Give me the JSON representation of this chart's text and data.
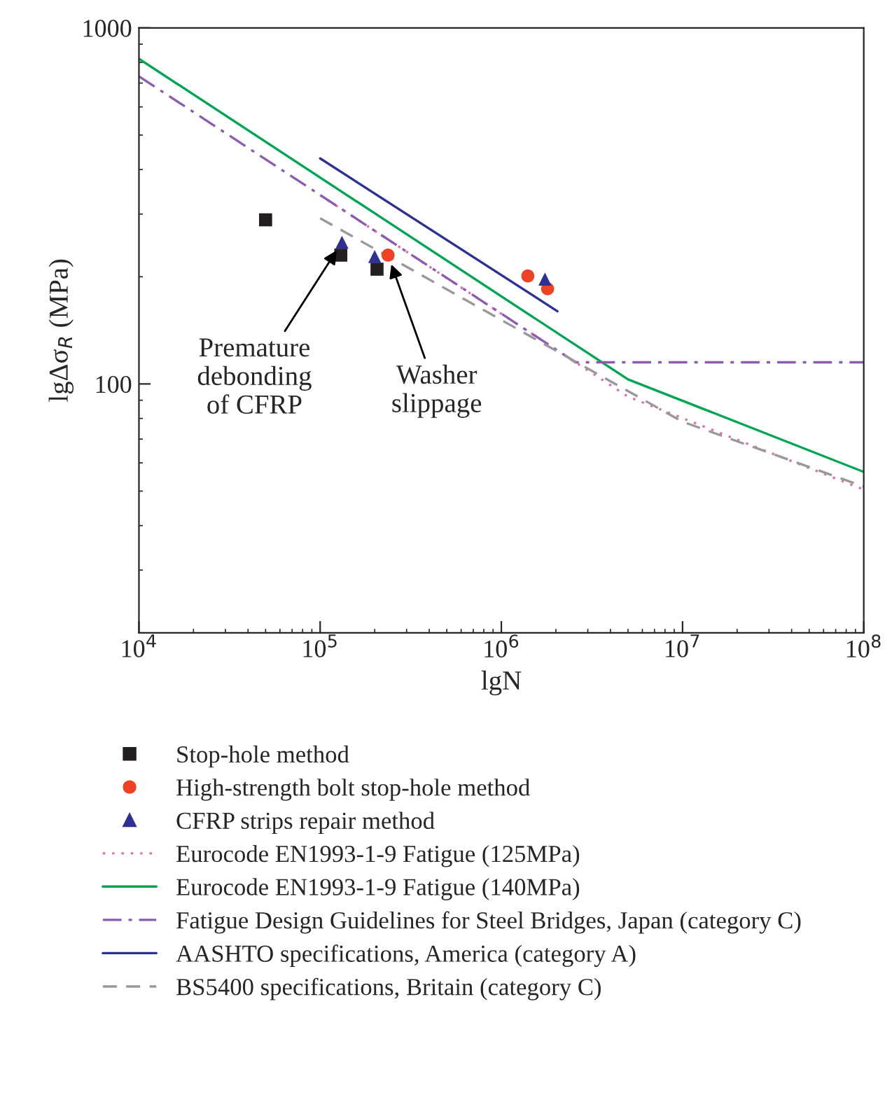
{
  "chart_data": {
    "type": "scatter",
    "xlabel": "lgN",
    "ylabel": "lgΔσ$_{R}$ (MPa)",
    "log": "xy",
    "xlim": [
      10000,
      100000000
    ],
    "ylim": [
      20,
      1000
    ],
    "xticks": [
      {
        "value": 10000,
        "label": "10$^{4}$"
      },
      {
        "value": 100000,
        "label": "10$^{5}$"
      },
      {
        "value": 1000000,
        "label": "10$^{6}$"
      },
      {
        "value": 10000000,
        "label": "10$^{7}$"
      },
      {
        "value": 100000000,
        "label": "10$^{8}$"
      }
    ],
    "yticks": [
      100,
      1000
    ],
    "grid": false,
    "legend": "bottom",
    "series": [
      {
        "name": "Stop-hole method",
        "marker": "square",
        "color": "#231f20",
        "x": [
          50000,
          130000,
          206000
        ],
        "values": [
          289,
          230,
          210
        ]
      },
      {
        "name": "High-strength bolt stop-hole method",
        "marker": "circle",
        "color": "#ef4123",
        "x": [
          237000,
          1400000,
          1800000
        ],
        "values": [
          230,
          201,
          185
        ]
      },
      {
        "name": "CFRP strips repair method",
        "marker": "triangle",
        "color": "#2e3192",
        "x": [
          132000,
          200000,
          1740000
        ],
        "values": [
          250,
          228,
          197
        ]
      },
      {
        "name": "Eurocode EN1993-1-9 Fatigue (125MPa)",
        "type": "line",
        "line_style": "dotted",
        "color": "#e06fb0",
        "x": [
          100000,
          5000000,
          100000000
        ],
        "values": [
          339,
          92.1,
          50.5
        ]
      },
      {
        "name": "Eurocode EN1993-1-9 Fatigue (140MPa)",
        "type": "line",
        "line_style": "solid",
        "color": "#00a651",
        "x": [
          10000,
          5000000,
          100000000
        ],
        "values": [
          819,
          103,
          56.6
        ]
      },
      {
        "name": "Fatigue Design Guidelines for Steel Bridges, Japan (category C)",
        "type": "line",
        "line_style": "dashdot",
        "color": "#8a5bb0",
        "x": [
          10000,
          2570000,
          100000000
        ],
        "values": [
          731,
          115,
          115
        ]
      },
      {
        "name": "AASHTO specifications, America (category A)",
        "type": "line",
        "line_style": "solid",
        "color": "#2e3192",
        "x": [
          100000,
          2040000
        ],
        "values": [
          430,
          160
        ]
      },
      {
        "name": "BS5400 specifications, Britain (category C)",
        "type": "line",
        "line_style": "dashed",
        "color": "#999999",
        "x": [
          100000,
          10000000,
          100000000
        ],
        "values": [
          292,
          78.3,
          51.5
        ]
      }
    ],
    "annotations": [
      {
        "text": "Premature\ndebonding\nof CFRP",
        "x": 132000,
        "y": 250
      },
      {
        "text": "Washer\nslippage",
        "x": 237000,
        "y": 230
      }
    ]
  }
}
